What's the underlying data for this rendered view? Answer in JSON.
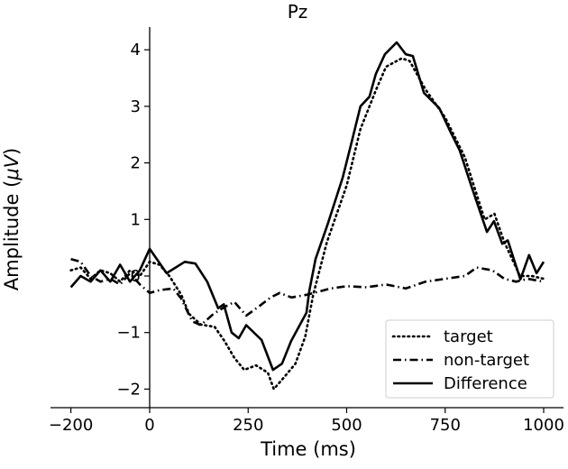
{
  "chart_data": {
    "type": "line",
    "title": "Pz",
    "xlabel": "Time (ms)",
    "ylabel_prefix": "Amplitude (",
    "ylabel_unit": "μV",
    "ylabel_suffix": ")",
    "xlim": [
      -252,
      1050
    ],
    "ylim": [
      -2.33,
      4.4
    ],
    "xticks": [
      -200,
      0,
      250,
      500,
      750,
      1000
    ],
    "xtick_labels": [
      "−200",
      "0",
      "250",
      "500",
      "750",
      "1000"
    ],
    "yticks": [
      -2,
      -1,
      0,
      1,
      2,
      3,
      4
    ],
    "ytick_labels": [
      "−2",
      "−1",
      "0",
      "1",
      "2",
      "3",
      "4"
    ],
    "grid": false,
    "legend_position": "bottom-right",
    "series": [
      {
        "name": "target",
        "style": "dotted",
        "x": [
          -200,
          -175,
          -150,
          -125,
          -100,
          -75,
          -50,
          -25,
          0,
          25,
          50,
          80,
          100,
          130,
          165,
          190,
          215,
          240,
          270,
          300,
          315,
          340,
          370,
          395,
          415,
          450,
          500,
          535,
          575,
          600,
          640,
          660,
          700,
          750,
          800,
          850,
          875,
          900,
          940,
          970,
          1000
        ],
        "y": [
          0.1,
          0.15,
          -0.05,
          0.1,
          0.05,
          -0.1,
          0.1,
          0.0,
          0.25,
          0.2,
          0.0,
          -0.33,
          -0.67,
          -0.86,
          -0.9,
          -1.15,
          -1.45,
          -1.66,
          -1.58,
          -1.71,
          -2.0,
          -1.8,
          -1.55,
          -1.07,
          -0.33,
          0.6,
          1.6,
          2.6,
          3.3,
          3.7,
          3.85,
          3.8,
          3.3,
          2.8,
          2.1,
          1.0,
          1.1,
          0.6,
          0.0,
          0.0,
          -0.05
        ]
      },
      {
        "name": "non-target",
        "style": "dashdot",
        "x": [
          -200,
          -175,
          -150,
          -125,
          -100,
          -75,
          -50,
          -25,
          0,
          25,
          60,
          80,
          108,
          130,
          162,
          192,
          215,
          245,
          277,
          307,
          330,
          360,
          400,
          460,
          500,
          550,
          600,
          650,
          700,
          750,
          800,
          830,
          870,
          900,
          930,
          960,
          1000
        ],
        "y": [
          0.3,
          0.25,
          0.0,
          -0.1,
          -0.05,
          -0.15,
          0.05,
          -0.15,
          -0.3,
          -0.25,
          -0.22,
          -0.4,
          -0.8,
          -0.87,
          -0.67,
          -0.54,
          -0.46,
          -0.7,
          -0.54,
          -0.38,
          -0.3,
          -0.38,
          -0.33,
          -0.22,
          -0.18,
          -0.2,
          -0.15,
          -0.22,
          -0.1,
          -0.05,
          -0.0,
          0.15,
          0.1,
          -0.05,
          -0.1,
          -0.05,
          -0.1
        ]
      },
      {
        "name": "Difference",
        "style": "solid",
        "x": [
          -200,
          -175,
          -150,
          -125,
          -100,
          -75,
          -50,
          -25,
          0,
          43,
          89,
          116,
          146,
          174,
          188,
          208,
          226,
          245,
          284,
          313,
          336,
          359,
          398,
          405,
          421,
          451,
          490,
          513,
          535,
          558,
          574,
          597,
          627,
          650,
          668,
          696,
          735,
          764,
          787,
          817,
          856,
          874,
          895,
          909,
          941,
          963,
          982,
          1000
        ],
        "y": [
          -0.2,
          0.0,
          -0.1,
          0.1,
          -0.1,
          0.2,
          -0.1,
          0.1,
          0.48,
          0.05,
          0.25,
          0.22,
          -0.1,
          -0.57,
          -0.5,
          -1.0,
          -1.1,
          -0.87,
          -1.13,
          -1.66,
          -1.55,
          -1.15,
          -0.65,
          -0.27,
          0.3,
          0.9,
          1.74,
          2.38,
          3.0,
          3.17,
          3.57,
          3.92,
          4.13,
          3.92,
          3.89,
          3.24,
          2.97,
          2.54,
          2.22,
          1.58,
          0.78,
          0.97,
          0.57,
          0.63,
          -0.06,
          0.37,
          0.05,
          0.25
        ]
      }
    ]
  }
}
